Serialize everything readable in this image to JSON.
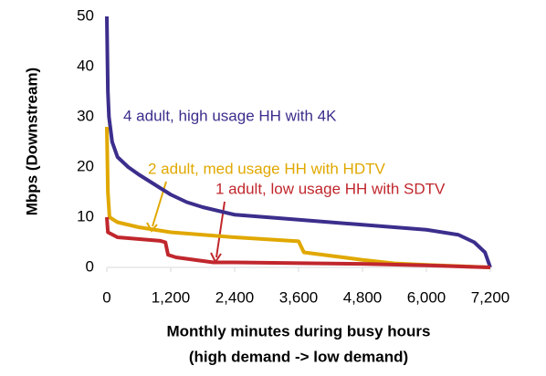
{
  "chart_data": {
    "type": "line",
    "ylabel": "Mbps (Downstream)",
    "xlabel": [
      "Monthly minutes during busy hours",
      "(high demand -> low demand)"
    ],
    "xlim": [
      0,
      7200
    ],
    "xticks": [
      0,
      {
        "value": 1200,
        "label": "1,200"
      },
      {
        "value": 2400,
        "label": "2,400"
      },
      {
        "value": 3600,
        "label": "3,600"
      },
      {
        "value": 4800,
        "label": "4,800"
      },
      {
        "value": 6000,
        "label": "6,000"
      },
      {
        "value": 7200,
        "label": "7,200"
      }
    ],
    "ylim": [
      0,
      50
    ],
    "yticks": [
      0,
      10,
      20,
      30,
      40,
      50
    ],
    "grid": false,
    "series": [
      {
        "name": "4 adult, high usage HH with 4K",
        "color": "#3b2e8c",
        "x": [
          0,
          20,
          40,
          100,
          200,
          400,
          600,
          900,
          1200,
          1500,
          1800,
          2400,
          3600,
          4800,
          6000,
          6600,
          6900,
          7100,
          7200
        ],
        "values": [
          50,
          35,
          30,
          25,
          22,
          20,
          18.5,
          16.5,
          14.5,
          13,
          12,
          10.5,
          9.5,
          8.5,
          7.5,
          6.5,
          5,
          3,
          0
        ]
      },
      {
        "name": "2 adult, med usage HH with HDTV",
        "color": "#e0a800",
        "x": [
          0,
          20,
          50,
          200,
          600,
          1200,
          2400,
          3600,
          3700,
          4800,
          5400,
          6000,
          7200
        ],
        "values": [
          28,
          15,
          10,
          9,
          8,
          7,
          6,
          5.2,
          3,
          1.5,
          0.8,
          0.5,
          0
        ]
      },
      {
        "name": "1 adult, low usage HH with SDTV",
        "color": "#c0272d",
        "x": [
          0,
          20,
          200,
          1000,
          1100,
          1150,
          1300,
          2000,
          2400,
          4800,
          6000,
          7200
        ],
        "values": [
          10,
          7,
          6,
          5.3,
          5,
          2.5,
          2,
          1,
          1,
          0.7,
          0.4,
          0
        ]
      }
    ]
  }
}
